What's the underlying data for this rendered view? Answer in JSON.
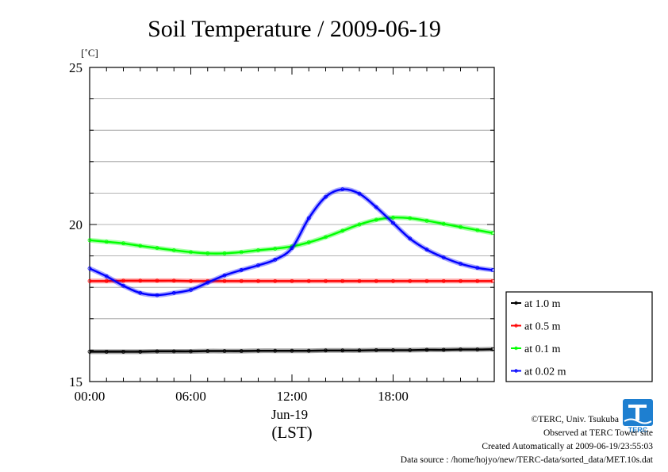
{
  "chart_data": {
    "type": "line",
    "title": "Soil Temperature / 2009-06-19",
    "ylabel": "[˚C]",
    "xlabel": "(LST)",
    "date_label": "Jun-19",
    "xlim": [
      0,
      24
    ],
    "ylim": [
      15,
      25
    ],
    "x_ticks": [
      0,
      6,
      12,
      18
    ],
    "x_tick_labels": [
      "00:00",
      "06:00",
      "12:00",
      "18:00"
    ],
    "y_ticks": [
      15,
      20,
      25
    ],
    "y_tick_labels": [
      "15",
      "20",
      "25"
    ],
    "grid": "horizontal, every 1 ˚C",
    "legend_position": "lower-right, outside plot",
    "x": [
      0,
      1,
      2,
      3,
      4,
      5,
      6,
      7,
      8,
      9,
      10,
      11,
      12,
      13,
      14,
      15,
      16,
      17,
      18,
      19,
      20,
      21,
      22,
      23,
      23.9
    ],
    "series": [
      {
        "name": "at 1.0 m",
        "color": "#000000",
        "values": [
          15.95,
          15.95,
          15.95,
          15.95,
          15.96,
          15.96,
          15.96,
          15.97,
          15.97,
          15.97,
          15.98,
          15.98,
          15.98,
          15.98,
          15.99,
          15.99,
          15.99,
          16.0,
          16.0,
          16.0,
          16.01,
          16.01,
          16.02,
          16.02,
          16.03
        ]
      },
      {
        "name": "at 0.5 m",
        "color": "#ff0000",
        "values": [
          18.2,
          18.2,
          18.21,
          18.21,
          18.21,
          18.21,
          18.2,
          18.2,
          18.2,
          18.2,
          18.2,
          18.2,
          18.2,
          18.2,
          18.2,
          18.2,
          18.2,
          18.2,
          18.2,
          18.2,
          18.2,
          18.2,
          18.2,
          18.2,
          18.2
        ]
      },
      {
        "name": "at 0.1 m",
        "color": "#00ff00",
        "values": [
          19.5,
          19.45,
          19.4,
          19.32,
          19.25,
          19.18,
          19.12,
          19.08,
          19.08,
          19.12,
          19.18,
          19.23,
          19.3,
          19.43,
          19.6,
          19.8,
          20.0,
          20.15,
          20.22,
          20.2,
          20.12,
          20.02,
          19.92,
          19.82,
          19.73
        ]
      },
      {
        "name": "at 0.02 m",
        "color": "#0000ff",
        "values": [
          18.6,
          18.35,
          18.05,
          17.82,
          17.75,
          17.82,
          17.92,
          18.15,
          18.38,
          18.55,
          18.7,
          18.88,
          19.25,
          20.2,
          20.88,
          21.12,
          20.98,
          20.55,
          20.05,
          19.55,
          19.2,
          18.95,
          18.75,
          18.62,
          18.55
        ]
      }
    ]
  },
  "credits": {
    "copyright": "©TERC, Univ. Tsukuba",
    "observed": "Observed at TERC Tower site",
    "created": "Created Automatically at 2009-06-19/23:55:03",
    "source": "Data source : /home/hojyo/new/TERC-data/sorted_data/MET.10s.dat"
  },
  "logo": {
    "text": "TERC",
    "color": "#1e7fd0"
  }
}
